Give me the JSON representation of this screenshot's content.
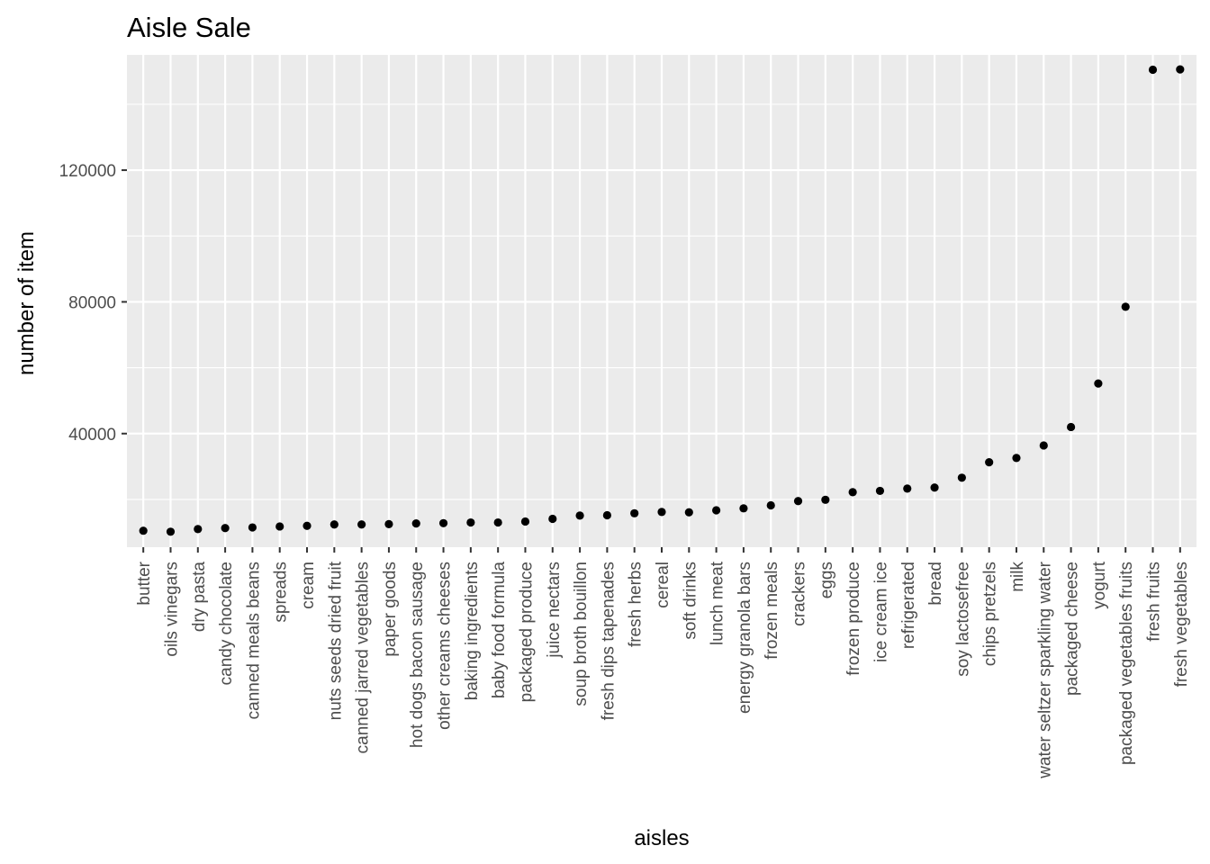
{
  "chart_data": {
    "type": "scatter",
    "title": "Aisle Sale",
    "xlabel": "aisles",
    "ylabel": "number of item",
    "ylim": [
      5500,
      155000
    ],
    "yticks": [
      40000,
      80000,
      120000
    ],
    "ytick_labels": [
      "40000",
      "80000",
      "120000"
    ],
    "grid": true,
    "colors": {
      "panel": "#ebebeb",
      "grid": "#ffffff",
      "point": "#000000"
    },
    "categories": [
      "butter",
      "oils vinegars",
      "dry pasta",
      "candy chocolate",
      "canned meals beans",
      "spreads",
      "cream",
      "nuts seeds dried fruit",
      "canned jarred vegetables",
      "paper goods",
      "hot dogs bacon sausage",
      "other creams cheeses",
      "baking ingredients",
      "baby food formula",
      "packaged produce",
      "juice nectars",
      "soup broth bouillon",
      "fresh dips tapenades",
      "fresh herbs",
      "cereal",
      "soft drinks",
      "lunch meat",
      "energy granola bars",
      "frozen meals",
      "crackers",
      "eggs",
      "frozen produce",
      "ice cream ice",
      "refrigerated",
      "bread",
      "soy lactosefree",
      "chips pretzels",
      "milk",
      "water seltzer sparkling water",
      "packaged cheese",
      "yogurt",
      "packaged vegetables fruits",
      "fresh fruits",
      "fresh vegetables"
    ],
    "values": [
      10500,
      10200,
      11000,
      11300,
      11500,
      11800,
      12000,
      12400,
      12400,
      12500,
      12700,
      12800,
      13000,
      13000,
      13300,
      14100,
      15100,
      15200,
      15800,
      16200,
      16100,
      16700,
      17300,
      18200,
      19500,
      19900,
      22200,
      22600,
      23300,
      23600,
      26600,
      31300,
      32600,
      36400,
      42000,
      55200,
      78500,
      150500,
      150600
    ]
  }
}
